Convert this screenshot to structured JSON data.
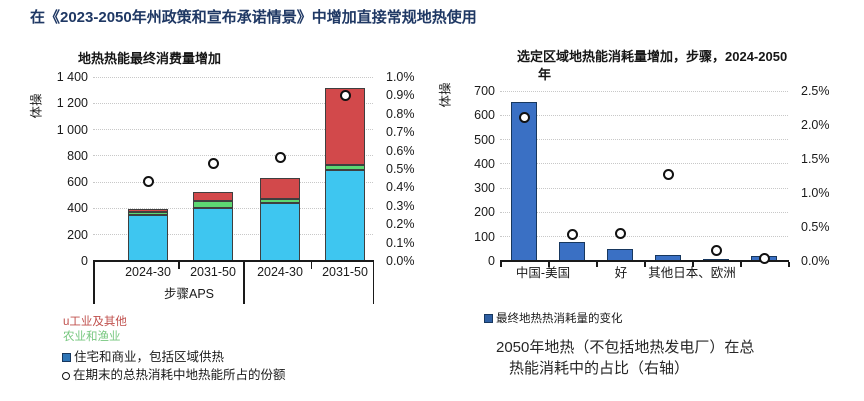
{
  "title": "在《2023-2050年州政策和宣布承诺情景》中增加直接常规地热使用",
  "colors": {
    "title_navy": "#1F3864",
    "bar_residential_blue": "#3EC6F0",
    "bar_agriculture_green": "#5DD873",
    "bar_industry_red": "#D2494B",
    "bar_right_blue": "#3A70C4",
    "bar_right_border": "#17375E",
    "legend_red_text": "#C0504D",
    "legend_green_text": "#77C77F",
    "gridline_gray": "#c8c8c8"
  },
  "left_chart": {
    "title": "地热热能最终消费量增加",
    "y_axis_label": "体操",
    "left_axis_ticks": [
      "1 400",
      "1 200",
      "1 000",
      "800",
      "600",
      "400",
      "200",
      "0"
    ],
    "right_axis_ticks": [
      "1.0%",
      "0.9%",
      "0.8%",
      "0.7%",
      "0.6%",
      "0.5%",
      "0.4%",
      "0.3%",
      "0.2%",
      "0.1%",
      "0.0%"
    ],
    "x_labels": [
      "2024-30",
      "2031-50",
      "2024-30",
      "2031-50"
    ],
    "group_label": "步骤APS",
    "legend": [
      {
        "text": "u工业及其他",
        "color": "#C0504D"
      },
      {
        "text": "农业和渔业",
        "color": "#77C77F"
      },
      {
        "text": "住宅和商业，包括区域供热",
        "color": "#1a1a1a"
      },
      {
        "text": "在期末的总热消耗中地热能所占的份额",
        "color": "#1a1a1a"
      }
    ]
  },
  "right_chart": {
    "title_line1": "选定区域地热能消耗量增加，步骤，2024-2050",
    "title_line2": "年",
    "y_axis_label": "体操",
    "left_axis_ticks": [
      "700",
      "600",
      "500",
      "400",
      "300",
      "200",
      "100",
      "0"
    ],
    "right_axis_ticks": [
      "2.5%",
      "2.0%",
      "1.5%",
      "1.0%",
      "0.5%",
      "0.0%"
    ],
    "x_labels": [
      "中国-美国",
      "好",
      "其他日本、欧洲"
    ],
    "legend_label": "最终地热热消耗量的变化",
    "caption_line1": "2050年地热（不包括地热发电厂）在总",
    "caption_line2": "热能消耗中的占比（右轴）"
  },
  "chart_data": [
    {
      "type": "bar",
      "subtype": "stacked_with_share_markers",
      "title": "地热热能最终消费量增加",
      "categories": [
        "2024-30",
        "2031-50",
        "2024-30",
        "2031-50"
      ],
      "groups": [
        "步骤",
        "APS"
      ],
      "series": [
        {
          "name": "住宅和商业，包括区域供热",
          "color": "#3EC6F0",
          "values": [
            350,
            405,
            440,
            690
          ]
        },
        {
          "name": "农业和渔业",
          "color": "#5DD873",
          "values": [
            20,
            55,
            30,
            40
          ]
        },
        {
          "name": "工业及其他",
          "color": "#D2494B",
          "values": [
            25,
            63,
            160,
            590
          ]
        }
      ],
      "bar_totals": [
        395,
        523,
        630,
        1320
      ],
      "markers": {
        "name": "在期末的总热消耗中地热能所占的份额",
        "axis": "right",
        "values_pct": [
          0.43,
          0.53,
          0.56,
          0.9
        ]
      },
      "ylim_left": [
        0,
        1400
      ],
      "ytick_step_left": 200,
      "ylim_right_pct": [
        0.0,
        1.0
      ],
      "ytick_step_right_pct": 0.1,
      "grid": true,
      "legend_position": "below-left"
    },
    {
      "type": "bar",
      "subtype": "single_series_with_share_markers",
      "title": "选定区域地热能消耗量增加，步骤，2024-2050年",
      "categories_visible": [
        "中国-美国",
        "好",
        "其他日本、欧洲"
      ],
      "series": [
        {
          "name": "最终地热热消耗量的变化",
          "color": "#3A70C4",
          "values": [
            655,
            80,
            50,
            25,
            8,
            20
          ]
        }
      ],
      "markers": {
        "name": "2050年地热（不包括地热发电厂）在总热能消耗中的占比（右轴）",
        "axis": "right",
        "values_pct": [
          2.11,
          0.39,
          0.4,
          1.27,
          0.16,
          0.04
        ]
      },
      "ylim_left": [
        0,
        700
      ],
      "ytick_step_left": 100,
      "ylim_right_pct": [
        0.0,
        2.5
      ],
      "ytick_step_right_pct": 0.5,
      "grid": true,
      "legend_position": "below-left"
    }
  ]
}
